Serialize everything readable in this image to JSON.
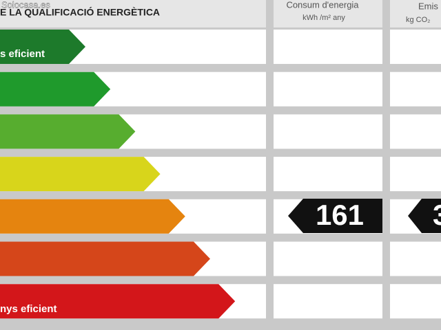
{
  "watermark": "Solocasa.es",
  "header": {
    "title": "E LA QUALIFICACIÓ ENERGÈTICA",
    "columns": [
      {
        "title": "Consum d'energia",
        "unit": "kWh /m² any"
      },
      {
        "title": "Emis",
        "unit": "kg CO₂"
      }
    ]
  },
  "scale": {
    "top_label": "s eficient",
    "bottom_label": "nys eficient"
  },
  "rating": {
    "energy": "161",
    "emissions": "3"
  }
}
